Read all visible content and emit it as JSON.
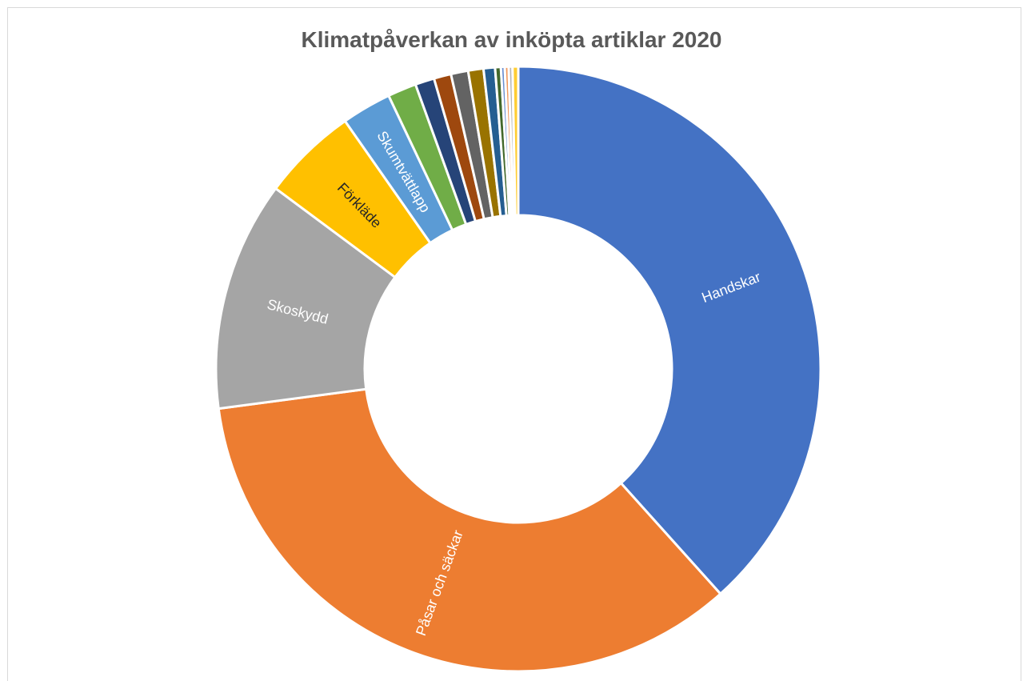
{
  "chart_data": {
    "type": "pie",
    "variant": "doughnut",
    "title": "Klimatpåverkan av inköpta artiklar 2020",
    "slices": [
      {
        "label": "Handskar",
        "value": 37.5,
        "color": "#4472C4",
        "label_color": "#ffffff"
      },
      {
        "label": "Påsar och säckar",
        "value": 33.8,
        "color": "#ED7D31",
        "label_color": "#ffffff"
      },
      {
        "label": "Skoskydd",
        "value": 12.0,
        "color": "#A5A5A5",
        "label_color": "#ffffff"
      },
      {
        "label": "Förkläde",
        "value": 5.0,
        "color": "#FFC000",
        "label_color": "#262626"
      },
      {
        "label": "Skumtvättlapp",
        "value": 2.6,
        "color": "#5B9BD5",
        "label_color": "#ffffff"
      },
      {
        "label": "",
        "value": 1.5,
        "color": "#70AD47"
      },
      {
        "label": "",
        "value": 1.0,
        "color": "#264478"
      },
      {
        "label": "",
        "value": 0.9,
        "color": "#9E480E"
      },
      {
        "label": "",
        "value": 0.9,
        "color": "#636363"
      },
      {
        "label": "",
        "value": 0.8,
        "color": "#997300"
      },
      {
        "label": "",
        "value": 0.6,
        "color": "#255E91"
      },
      {
        "label": "",
        "value": 0.3,
        "color": "#43682B"
      },
      {
        "label": "",
        "value": 0.2,
        "color": "#698ED0"
      },
      {
        "label": "",
        "value": 0.2,
        "color": "#F1975A"
      },
      {
        "label": "",
        "value": 0.2,
        "color": "#B7B7B7"
      },
      {
        "label": "",
        "value": 0.3,
        "color": "#FFCD33"
      }
    ],
    "legend": "none"
  }
}
